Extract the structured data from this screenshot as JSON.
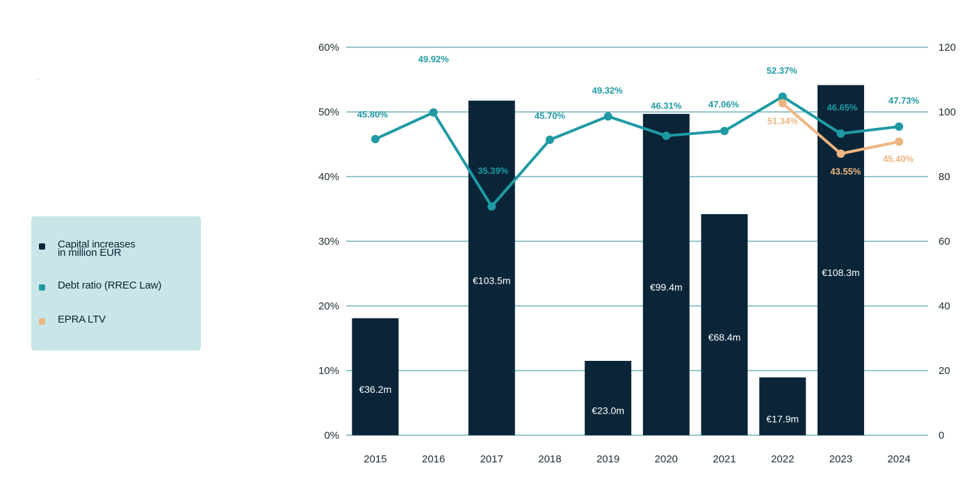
{
  "legend": {
    "items": [
      {
        "label_line1": "Capital increases",
        "label_line2": "in million EUR",
        "color": "#0a2538"
      },
      {
        "label_line1": "Debt ratio (RREC Law)",
        "label_line2": "",
        "color": "#1f9aa4"
      },
      {
        "label_line1": "EPRA LTV",
        "label_line2": "",
        "color": "#eeb581"
      }
    ]
  },
  "marks": {
    "stray_mark": "’"
  },
  "chart_data": {
    "type": "bar",
    "title": "",
    "xlabel": "",
    "ylabel": "",
    "categories": [
      "2015",
      "2016",
      "2017",
      "2018",
      "2019",
      "2020",
      "2021",
      "2022",
      "2023",
      "2024"
    ],
    "left_axis": {
      "ylim": [
        0,
        60
      ],
      "ticks": [
        "0%",
        "10%",
        "20%",
        "30%",
        "40%",
        "50%",
        "60%"
      ]
    },
    "right_axis": {
      "ylim": [
        0,
        120
      ],
      "ticks": [
        "0",
        "20",
        "40",
        "60",
        "80",
        "100",
        "120"
      ]
    },
    "grid": true,
    "legend_position": "left",
    "series": [
      {
        "name": "Capital increases in million EUR",
        "type": "bar",
        "axis": "right",
        "color": "#0a2538",
        "values": [
          36.2,
          null,
          103.5,
          null,
          23.0,
          99.4,
          68.4,
          17.9,
          108.3,
          null
        ],
        "labels": [
          "€36.2m",
          "",
          "€103.5m",
          "",
          "€23.0m",
          "€99.4m",
          "€68.4m",
          "€17.9m",
          "€108.3m",
          ""
        ]
      },
      {
        "name": "Debt ratio (RREC Law)",
        "type": "line",
        "axis": "left",
        "color": "#1f9aa4",
        "values": [
          45.8,
          49.92,
          35.39,
          45.7,
          49.32,
          46.31,
          47.06,
          52.37,
          46.65,
          47.73
        ],
        "labels": [
          "45.80%",
          "49.92%",
          "35.39%",
          "45.70%",
          "49.32%",
          "46.31%",
          "47.06%",
          "52.37%",
          "46.65%",
          "47.73%"
        ]
      },
      {
        "name": "EPRA LTV",
        "type": "line",
        "axis": "left",
        "color": "#eeb581",
        "values": [
          null,
          null,
          null,
          null,
          null,
          null,
          null,
          51.34,
          43.55,
          45.4
        ],
        "labels": [
          "",
          "",
          "",
          "",
          "",
          "",
          "",
          "51.34%",
          "43.55%",
          "45.40%"
        ]
      }
    ]
  }
}
